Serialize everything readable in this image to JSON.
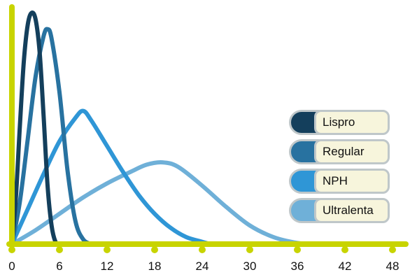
{
  "chart_data": {
    "type": "line",
    "title": "",
    "xlabel": "",
    "ylabel": "",
    "xlim": [
      0,
      48
    ],
    "ylim": [
      0,
      100
    ],
    "x_ticks": [
      "0",
      "6",
      "12",
      "18",
      "24",
      "30",
      "36",
      "42",
      "48"
    ],
    "legend_position": "right",
    "grid": false,
    "axis_color": "#c8d400",
    "series": [
      {
        "name": "Lispro",
        "color": "#143f5c",
        "points": [
          [
            0,
            0
          ],
          [
            0.5,
            20
          ],
          [
            1,
            50
          ],
          [
            1.5,
            78
          ],
          [
            2,
            94
          ],
          [
            2.5,
            99
          ],
          [
            3,
            96
          ],
          [
            3.5,
            82
          ],
          [
            4,
            55
          ],
          [
            4.5,
            25
          ],
          [
            5,
            8
          ],
          [
            5.5,
            1
          ],
          [
            6,
            0
          ]
        ]
      },
      {
        "name": "Regular",
        "color": "#2872a0",
        "points": [
          [
            0,
            0
          ],
          [
            1,
            18
          ],
          [
            2,
            45
          ],
          [
            3,
            72
          ],
          [
            4,
            89
          ],
          [
            4.5,
            92
          ],
          [
            5,
            88
          ],
          [
            6,
            65
          ],
          [
            7,
            32
          ],
          [
            8,
            10
          ],
          [
            9,
            2
          ],
          [
            10,
            0
          ]
        ]
      },
      {
        "name": "NPH",
        "color": "#2f96d6",
        "points": [
          [
            0,
            0
          ],
          [
            2,
            15
          ],
          [
            4,
            30
          ],
          [
            6,
            44
          ],
          [
            8,
            54
          ],
          [
            9,
            57
          ],
          [
            10,
            53
          ],
          [
            12,
            42
          ],
          [
            14,
            31
          ],
          [
            16,
            21
          ],
          [
            18,
            13
          ],
          [
            20,
            7
          ],
          [
            22,
            3
          ],
          [
            24,
            1
          ],
          [
            25,
            0
          ]
        ]
      },
      {
        "name": "Ultralenta",
        "color": "#6fb0d8",
        "points": [
          [
            0,
            0
          ],
          [
            3,
            6
          ],
          [
            6,
            13
          ],
          [
            9,
            20
          ],
          [
            12,
            26
          ],
          [
            15,
            31
          ],
          [
            17,
            34
          ],
          [
            19,
            35
          ],
          [
            21,
            33
          ],
          [
            24,
            25
          ],
          [
            27,
            16
          ],
          [
            30,
            8
          ],
          [
            33,
            3
          ],
          [
            36,
            0.5
          ],
          [
            38,
            0
          ]
        ]
      }
    ]
  }
}
